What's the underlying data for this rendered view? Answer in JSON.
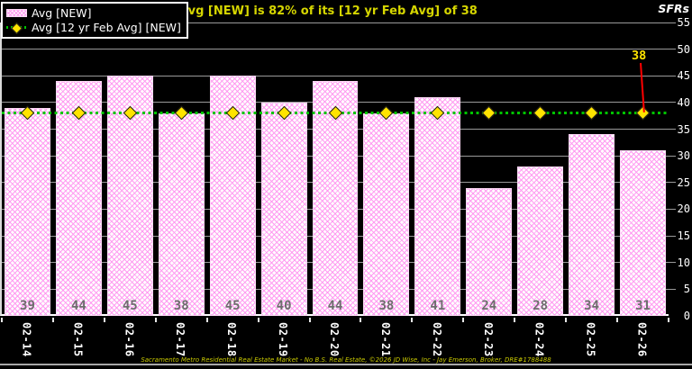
{
  "title": "Avg [NEW] is 82% of its [12 yr Feb Avg] of 38",
  "unit_label": "SFRs",
  "legend": {
    "items": [
      {
        "label": "Avg [NEW]",
        "swatch": "bar-pattern"
      },
      {
        "label": "Avg [12 yr Feb Avg] [NEW]",
        "swatch": "dotted-line-diamond"
      }
    ]
  },
  "annotation": {
    "label": "38",
    "points_to": "02-26 average line marker"
  },
  "footer": "Sacramento Metro Residential Real Estate Market - No B.S. Real Estate, ©2026 JD Wise, Inc - Jay Emerson, Broker, DRE#1788488",
  "chart_data": {
    "type": "bar",
    "title": "Avg [NEW] is 82% of its [12 yr Feb Avg] of 38",
    "categories": [
      "02-14",
      "02-15",
      "02-16",
      "02-17",
      "02-18",
      "02-19",
      "02-20",
      "02-21",
      "02-22",
      "02-23",
      "02-24",
      "02-25",
      "02-26"
    ],
    "values": [
      39,
      44,
      45,
      38,
      45,
      40,
      44,
      38,
      41,
      24,
      28,
      34,
      31
    ],
    "series": [
      {
        "name": "Avg [NEW]",
        "type": "bar",
        "values": [
          39,
          44,
          45,
          38,
          45,
          40,
          44,
          38,
          41,
          24,
          28,
          34,
          31
        ]
      },
      {
        "name": "Avg [12 yr Feb Avg] [NEW]",
        "type": "line",
        "values": [
          38,
          38,
          38,
          38,
          38,
          38,
          38,
          38,
          38,
          38,
          38,
          38,
          38
        ]
      }
    ],
    "avg_line_value": 38,
    "pct_of_avg": "82%",
    "xlabel": "",
    "ylabel": "SFRs",
    "ylim": [
      0,
      55
    ],
    "yticks": [
      0,
      5,
      10,
      15,
      20,
      25,
      30,
      35,
      40,
      45,
      50,
      55
    ],
    "grid": true,
    "bar_value_labels": true,
    "legend_position": "top-left"
  },
  "colors": {
    "background": "#000000",
    "bar_fill": "#fffbfe",
    "bar_pattern": "#ff94f0",
    "avg_line": "#00c400",
    "marker": "#ffe400",
    "title": "#d6d600",
    "annotation_text": "#ffe400",
    "annotation_arrow": "#ff0000",
    "gridline": "#9a9a9a",
    "axis": "#ffffff",
    "bar_value_label": "#6e6e6e",
    "tick_label": "#ffffff",
    "footer_text": "#c9c900"
  }
}
